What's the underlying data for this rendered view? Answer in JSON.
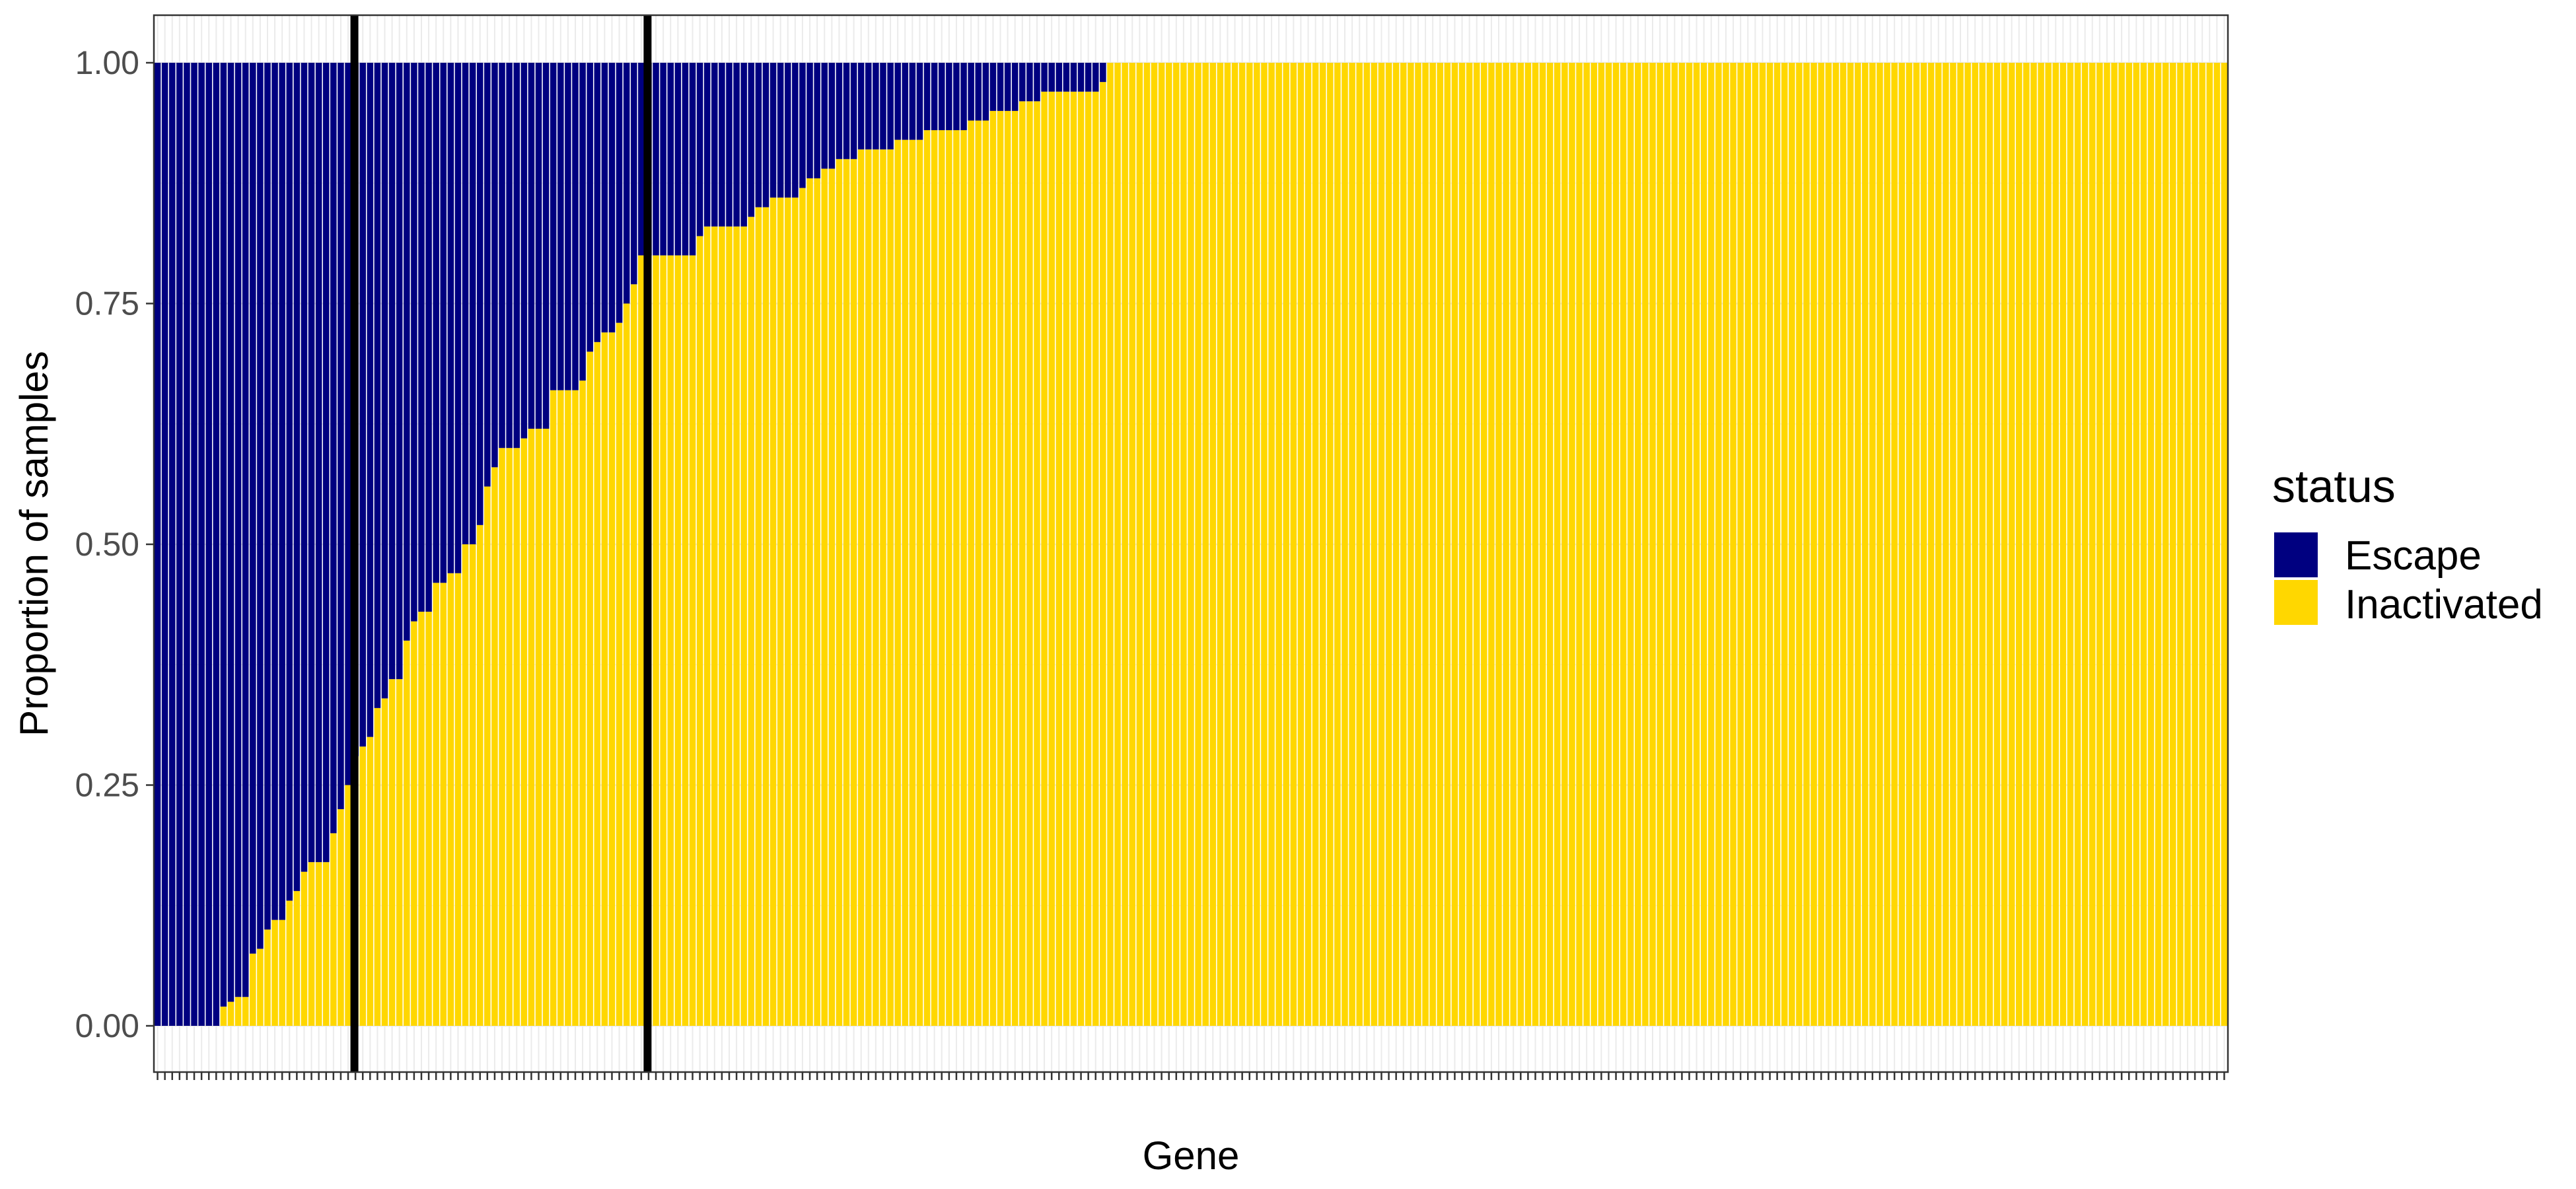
{
  "chart_data": {
    "type": "bar",
    "stacked": true,
    "title": "",
    "xlabel": "Gene",
    "ylabel": "Proportion of samples",
    "ylim": [
      0,
      1
    ],
    "yticks": [
      "0.00",
      "0.25",
      "0.50",
      "0.75",
      "1.00"
    ],
    "ytick_values": [
      0,
      0.25,
      0.5,
      0.75,
      1.0
    ],
    "x_tick_labels_shown": false,
    "grid": true,
    "legend": {
      "title": "status",
      "placement": "right",
      "entries": [
        "Escape",
        "Inactivated"
      ]
    },
    "colors": {
      "Escape": "#000080",
      "Inactivated": "#FFD700",
      "reference_line": "#000000"
    },
    "vertical_reference_lines_after_gene_index": [
      27,
      67
    ],
    "series": [
      {
        "name": "Inactivated",
        "values": [
          0,
          0,
          0,
          0,
          0,
          0,
          0,
          0,
          0,
          0.02,
          0.025,
          0.03,
          0.03,
          0.075,
          0.08,
          0.1,
          0.11,
          0.11,
          0.13,
          0.14,
          0.16,
          0.17,
          0.17,
          0.17,
          0.2,
          0.225,
          0.25,
          0.28,
          0.29,
          0.3,
          0.33,
          0.34,
          0.36,
          0.36,
          0.4,
          0.42,
          0.43,
          0.43,
          0.46,
          0.46,
          0.47,
          0.47,
          0.5,
          0.5,
          0.52,
          0.56,
          0.58,
          0.6,
          0.6,
          0.6,
          0.61,
          0.62,
          0.62,
          0.62,
          0.66,
          0.66,
          0.66,
          0.66,
          0.67,
          0.7,
          0.71,
          0.72,
          0.72,
          0.73,
          0.75,
          0.77,
          0.8,
          0.8,
          0.8,
          0.8,
          0.8,
          0.8,
          0.8,
          0.8,
          0.82,
          0.83,
          0.83,
          0.83,
          0.83,
          0.83,
          0.83,
          0.84,
          0.85,
          0.85,
          0.86,
          0.86,
          0.86,
          0.86,
          0.87,
          0.88,
          0.88,
          0.89,
          0.89,
          0.9,
          0.9,
          0.9,
          0.91,
          0.91,
          0.91,
          0.91,
          0.91,
          0.92,
          0.92,
          0.92,
          0.92,
          0.93,
          0.93,
          0.93,
          0.93,
          0.93,
          0.93,
          0.94,
          0.94,
          0.94,
          0.95,
          0.95,
          0.95,
          0.95,
          0.96,
          0.96,
          0.96,
          0.97,
          0.97,
          0.97,
          0.97,
          0.97,
          0.97,
          0.97,
          0.97,
          0.98,
          1,
          1,
          1,
          1,
          1,
          1,
          1,
          1,
          1,
          1,
          1,
          1,
          1,
          1,
          1,
          1,
          1,
          1,
          1,
          1,
          1,
          1,
          1,
          1,
          1,
          1,
          1,
          1,
          1,
          1,
          1,
          1,
          1,
          1,
          1,
          1,
          1,
          1,
          1,
          1,
          1,
          1,
          1,
          1,
          1,
          1,
          1,
          1,
          1,
          1,
          1,
          1,
          1,
          1,
          1,
          1,
          1,
          1,
          1,
          1,
          1,
          1,
          1,
          1,
          1,
          1,
          1,
          1,
          1,
          1,
          1,
          1,
          1,
          1,
          1,
          1,
          1,
          1,
          1,
          1,
          1,
          1,
          1,
          1,
          1,
          1,
          1,
          1,
          1,
          1,
          1,
          1,
          1,
          1,
          1,
          1,
          1,
          1,
          1,
          1,
          1,
          1,
          1,
          1,
          1,
          1,
          1,
          1,
          1,
          1,
          1,
          1,
          1,
          1,
          1,
          1,
          1,
          1,
          1,
          1,
          1,
          1,
          1,
          1,
          1,
          1,
          1,
          1,
          1,
          1,
          1,
          1,
          1,
          1,
          1,
          1,
          1,
          1,
          1,
          1,
          1,
          1,
          1,
          1,
          1,
          1,
          1,
          1,
          1,
          1,
          1,
          1,
          1
        ]
      },
      {
        "name": "Escape",
        "values": "complement: 1 - Inactivated for each gene"
      }
    ]
  }
}
